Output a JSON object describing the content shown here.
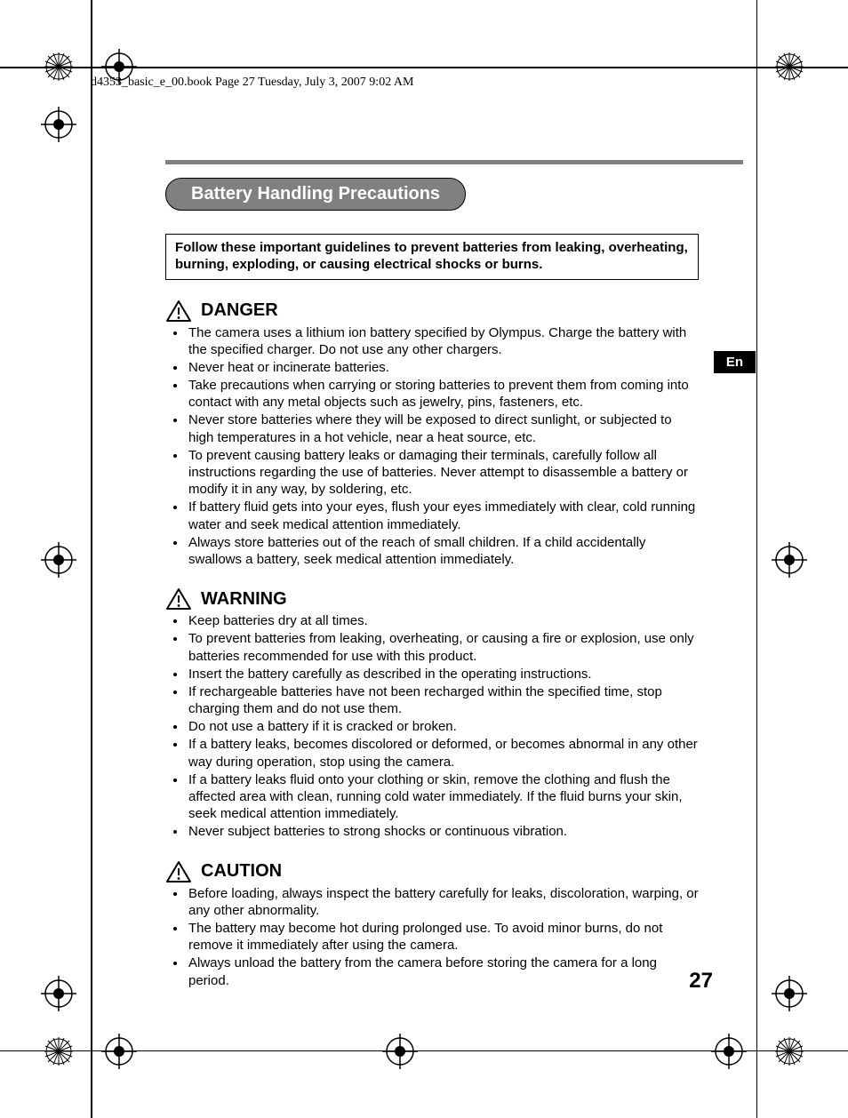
{
  "header_line": "d4353_basic_e_00.book  Page 27  Tuesday, July 3, 2007  9:02 AM",
  "section_title": "Battery Handling Precautions",
  "intro_box": "Follow these important guidelines to prevent batteries from leaking, overheating, burning, exploding, or causing electrical shocks or burns.",
  "lang_tab": "En",
  "page_number": "27",
  "danger": {
    "label": "DANGER",
    "items": [
      "The camera uses a lithium ion battery specified by Olympus. Charge the battery with the specified charger. Do not use any other chargers.",
      "Never heat or incinerate batteries.",
      "Take precautions when carrying or storing batteries to prevent them from coming into contact with any metal objects such as jewelry, pins, fasteners, etc.",
      "Never store batteries where they will be exposed to direct sunlight, or subjected to high temperatures in a hot vehicle, near a heat source, etc.",
      "To prevent causing battery leaks or damaging their terminals, carefully follow all instructions regarding the use of batteries. Never attempt to disassemble a battery or modify it in any way, by soldering, etc.",
      "If battery fluid gets into your eyes, flush your eyes immediately with clear, cold running water and seek medical attention immediately.",
      "Always store batteries out of the reach of small children. If a child accidentally swallows a battery, seek medical attention immediately."
    ]
  },
  "warning": {
    "label": "WARNING",
    "items": [
      "Keep batteries dry at all times.",
      "To prevent batteries from leaking, overheating, or causing a fire or explosion, use only batteries recommended for use with this product.",
      "Insert the battery carefully as described in the operating instructions.",
      "If rechargeable batteries have not been recharged within the specified time, stop charging them and do not use them.",
      "Do not use a battery if it is cracked or broken.",
      "If a battery leaks, becomes discolored or deformed, or becomes abnormal in any other way during operation, stop using the camera.",
      "If a battery leaks fluid onto your clothing or skin, remove the clothing and flush the affected area with clean, running cold water immediately. If the fluid burns your skin, seek medical attention immediately.",
      "Never subject batteries to strong shocks or continuous vibration."
    ]
  },
  "caution": {
    "label": "CAUTION",
    "items": [
      "Before loading, always inspect the battery carefully for leaks, discoloration, warping, or any other abnormality.",
      "The battery may become hot during prolonged use. To avoid minor burns, do not remove it immediately after using the camera.",
      "Always unload the battery from the camera before storing the camera for a long period."
    ]
  },
  "colors": {
    "pill_bg": "#808080",
    "pill_fg": "#ffffff",
    "bar": "#808080",
    "text": "#000000"
  }
}
